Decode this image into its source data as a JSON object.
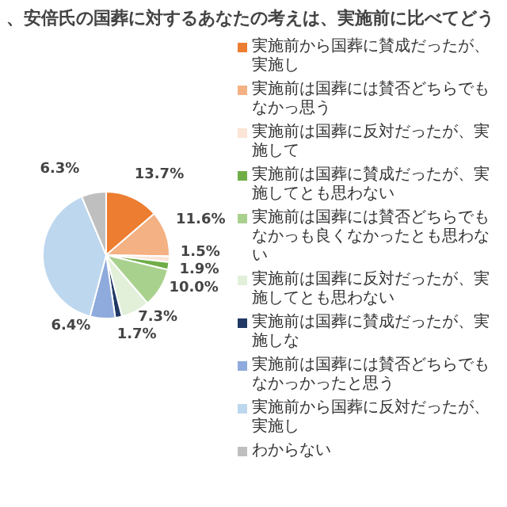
{
  "chart_data": {
    "type": "pie",
    "title": "、安倍氏の国葬に対するあなたの考えは、実施前に比べてどう",
    "categories": [
      "実施前から国葬に賛成だったが、実施し",
      "実施前は国葬には賛否どちらでもなかっ思う",
      "実施前は国葬に反対だったが、実施して",
      "実施前は国葬に賛成だったが、実施してとも思わない",
      "実施前は国葬には賛否どちらでもなかっも良くなかったとも思わない",
      "実施前は国葬に反対だったが、実施してとも思わない",
      "実施前は国葬に賛成だったが、実施しな",
      "実施前は国葬には賛否どちらでもなかっかったと思う",
      "実施前から国葬に反対だったが、実施し",
      "わからない"
    ],
    "values": [
      13.7,
      11.6,
      1.5,
      1.9,
      10.0,
      7.3,
      1.7,
      6.4,
      39.6,
      6.3
    ],
    "colors": [
      "#ed7d31",
      "#f4b183",
      "#fbe5d6",
      "#70ad47",
      "#a9d18e",
      "#e2f0d9",
      "#203864",
      "#8faadc",
      "#bdd7ee",
      "#bfbfbf"
    ],
    "value_labels": [
      "13.7%",
      "11.6%",
      "1.5%",
      "1.9%",
      "10.0%",
      "7.3%",
      "1.7%",
      "6.4%",
      null,
      "6.3%"
    ],
    "legend": "right"
  }
}
